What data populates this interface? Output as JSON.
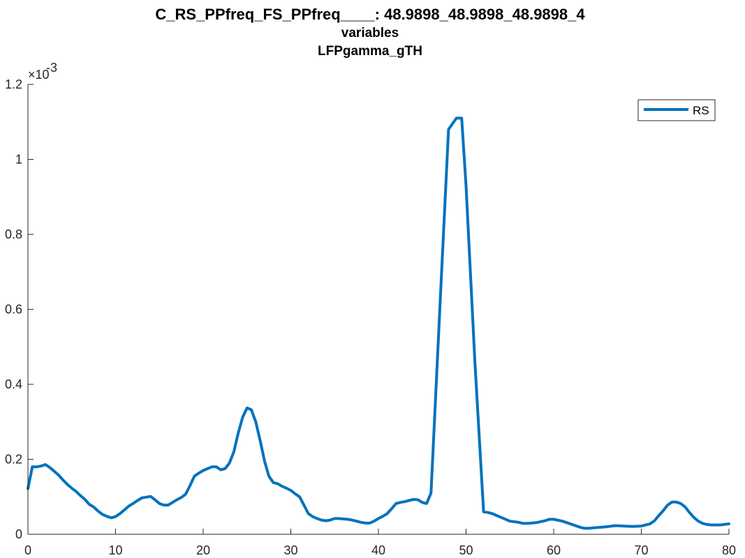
{
  "colors": {
    "series": "#0072BD",
    "axis": "#262626",
    "background": "#ffffff"
  },
  "chart_data": {
    "type": "line",
    "title_lines": [
      "C_RS_PPfreq_FS_PPfreq____: 48.9898_48.9898_48.9898_4",
      "variables",
      "LFPgamma_gTH"
    ],
    "xlabel": "",
    "ylabel": "",
    "xlim": [
      0,
      80
    ],
    "ylim": [
      0,
      0.0012
    ],
    "y_exponent_base": "×10",
    "y_exponent_power": "-3",
    "x_ticks": [
      {
        "value": 0,
        "label": "0"
      },
      {
        "value": 10,
        "label": "10"
      },
      {
        "value": 20,
        "label": "20"
      },
      {
        "value": 30,
        "label": "30"
      },
      {
        "value": 40,
        "label": "40"
      },
      {
        "value": 50,
        "label": "50"
      },
      {
        "value": 60,
        "label": "60"
      },
      {
        "value": 70,
        "label": "70"
      },
      {
        "value": 80,
        "label": "80"
      }
    ],
    "y_ticks": [
      {
        "value": 0,
        "label": "0"
      },
      {
        "value": 0.0002,
        "label": "0.2"
      },
      {
        "value": 0.0004,
        "label": "0.4"
      },
      {
        "value": 0.0006,
        "label": "0.6"
      },
      {
        "value": 0.0008,
        "label": "0.8"
      },
      {
        "value": 0.001,
        "label": "1"
      },
      {
        "value": 0.0012,
        "label": "1.2"
      }
    ],
    "legend_position": "top-right",
    "grid": false,
    "series": [
      {
        "name": "RS",
        "x": [
          0,
          0.5,
          1.0,
          1.5,
          2.0,
          2.5,
          3.0,
          3.5,
          4.0,
          4.5,
          5.0,
          5.5,
          6.0,
          6.5,
          7.0,
          7.5,
          8.0,
          8.5,
          9.0,
          9.5,
          10.0,
          10.5,
          11.0,
          11.5,
          12.0,
          12.5,
          13.0,
          13.5,
          14.0,
          14.5,
          15.0,
          15.5,
          16.0,
          16.5,
          17.0,
          17.5,
          18.0,
          18.5,
          19.0,
          19.5,
          20.0,
          20.5,
          21.0,
          21.5,
          22.0,
          22.5,
          23.0,
          23.5,
          24.0,
          24.5,
          25.0,
          25.5,
          26.0,
          26.5,
          27.0,
          27.5,
          28.0,
          28.5,
          29.0,
          29.5,
          30.0,
          30.5,
          31.0,
          31.5,
          32.0,
          32.5,
          33.0,
          33.5,
          34.0,
          34.5,
          35.0,
          35.5,
          36.0,
          36.5,
          37.0,
          37.5,
          38.0,
          38.5,
          39.0,
          39.5,
          40.0,
          40.5,
          41.0,
          41.5,
          42.0,
          42.5,
          43.0,
          43.5,
          44.0,
          44.5,
          45.0,
          45.5,
          46.0,
          47.0,
          48.0,
          48.9,
          49.5,
          50.0,
          51.0,
          52.0,
          52.5,
          53.0,
          53.5,
          54.0,
          55.0,
          56.0,
          56.5,
          57.0,
          58.0,
          59.0,
          59.5,
          60.0,
          61.0,
          62.0,
          63.0,
          63.5,
          64.0,
          65.0,
          66.0,
          67.0,
          68.0,
          69.0,
          70.0,
          71.0,
          71.5,
          72.0,
          72.5,
          73.0,
          73.5,
          74.0,
          74.5,
          75.0,
          75.5,
          76.0,
          76.5,
          77.0,
          77.5,
          78.0,
          79.0,
          80.0
        ],
        "values": [
          0.000122,
          0.00018,
          0.00018,
          0.000182,
          0.000186,
          0.000178,
          0.000168,
          0.000158,
          0.000145,
          0.000133,
          0.000123,
          0.000114,
          0.000103,
          9.3e-05,
          8e-05,
          7.3e-05,
          6.2e-05,
          5.3e-05,
          4.8e-05,
          4.4e-05,
          4.7e-05,
          5.5e-05,
          6.5e-05,
          7.5e-05,
          8.2e-05,
          9e-05,
          9.7e-05,
          9.9e-05,
          0.000101,
          9.2e-05,
          8.2e-05,
          7.8e-05,
          7.8e-05,
          8.5e-05,
          9.2e-05,
          9.8e-05,
          0.000107,
          0.00013,
          0.000155,
          0.000163,
          0.00017,
          0.000175,
          0.00018,
          0.00018,
          0.000172,
          0.000175,
          0.00019,
          0.00022,
          0.00027,
          0.000312,
          0.000337,
          0.000332,
          0.0003,
          0.00025,
          0.000195,
          0.000155,
          0.000138,
          0.000135,
          0.000128,
          0.000123,
          0.000117,
          0.000108,
          0.0001,
          7.8e-05,
          5.5e-05,
          4.7e-05,
          4.2e-05,
          3.8e-05,
          3.6e-05,
          3.8e-05,
          4.2e-05,
          4.2e-05,
          4.1e-05,
          4e-05,
          3.8e-05,
          3.5e-05,
          3.2e-05,
          3e-05,
          3e-05,
          3.5e-05,
          4.2e-05,
          4.8e-05,
          5.5e-05,
          6.8e-05,
          8.2e-05,
          8.5e-05,
          8.7e-05,
          9e-05,
          9.3e-05,
          9.2e-05,
          8.5e-05,
          8.2e-05,
          0.00011,
          0.0006,
          0.00108,
          0.00111,
          0.00111,
          0.000929,
          0.000465,
          6e-05,
          5.8e-05,
          5.5e-05,
          5e-05,
          4.5e-05,
          3.5e-05,
          3.2e-05,
          2.9e-05,
          2.9e-05,
          3.1e-05,
          3.6e-05,
          4e-05,
          4e-05,
          3.5e-05,
          2.7e-05,
          1.9e-05,
          1.6e-05,
          1.6e-05,
          1.8e-05,
          2e-05,
          2.3e-05,
          2.2e-05,
          2.1e-05,
          2.2e-05,
          2.8e-05,
          3.6e-05,
          5e-05,
          6.3e-05,
          7.8e-05,
          8.6e-05,
          8.6e-05,
          8.2e-05,
          7.3e-05,
          5.8e-05,
          4.5e-05,
          3.5e-05,
          2.9e-05,
          2.6e-05,
          2.5e-05,
          2.5e-05,
          2.8e-05
        ]
      }
    ]
  }
}
